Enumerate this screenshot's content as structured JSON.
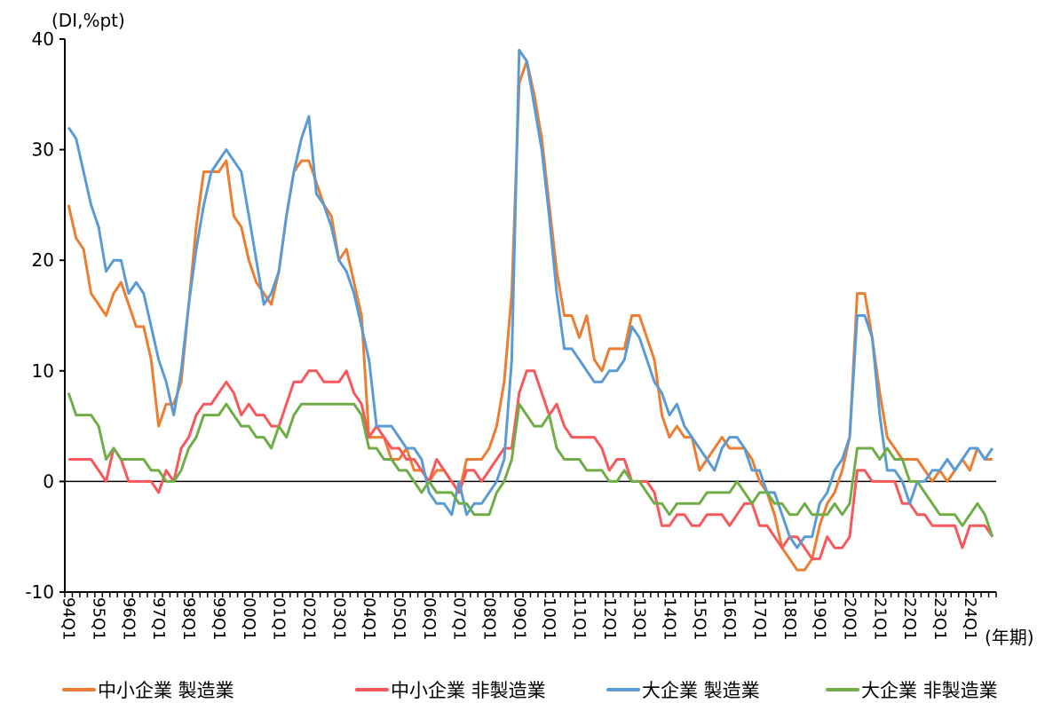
{
  "chart_data": {
    "type": "line",
    "title": "",
    "ylabel": "(DI,%pt)",
    "xlabel": "(年期)",
    "ylim": [
      -10,
      40
    ],
    "yticks": [
      -10,
      0,
      10,
      20,
      30,
      40
    ],
    "grid": false,
    "legend_position": "bottom",
    "x_tick_labels": [
      "94Q1",
      "95Q1",
      "96Q1",
      "97Q1",
      "98Q1",
      "99Q1",
      "00Q1",
      "01Q1",
      "02Q1",
      "03Q1",
      "04Q1",
      "05Q1",
      "06Q1",
      "07Q1",
      "08Q1",
      "09Q1",
      "10Q1",
      "11Q1",
      "12Q1",
      "13Q1",
      "14Q1",
      "15Q1",
      "16Q1",
      "17Q1",
      "18Q1",
      "19Q1",
      "20Q1",
      "21Q1",
      "22Q1",
      "23Q1",
      "24Q1"
    ],
    "categories": [
      "94Q1",
      "94Q2",
      "94Q3",
      "94Q4",
      "95Q1",
      "95Q2",
      "95Q3",
      "95Q4",
      "96Q1",
      "96Q2",
      "96Q3",
      "96Q4",
      "97Q1",
      "97Q2",
      "97Q3",
      "97Q4",
      "98Q1",
      "98Q2",
      "98Q3",
      "98Q4",
      "99Q1",
      "99Q2",
      "99Q3",
      "99Q4",
      "00Q1",
      "00Q2",
      "00Q3",
      "00Q4",
      "01Q1",
      "01Q2",
      "01Q3",
      "01Q4",
      "02Q1",
      "02Q2",
      "02Q3",
      "02Q4",
      "03Q1",
      "03Q2",
      "03Q3",
      "03Q4",
      "04Q1",
      "04Q2",
      "04Q3",
      "04Q4",
      "05Q1",
      "05Q2",
      "05Q3",
      "05Q4",
      "06Q1",
      "06Q2",
      "06Q3",
      "06Q4",
      "07Q1",
      "07Q2",
      "07Q3",
      "07Q4",
      "08Q1",
      "08Q2",
      "08Q3",
      "08Q4",
      "09Q1",
      "09Q2",
      "09Q3",
      "09Q4",
      "10Q1",
      "10Q2",
      "10Q3",
      "10Q4",
      "11Q1",
      "11Q2",
      "11Q3",
      "11Q4",
      "12Q1",
      "12Q2",
      "12Q3",
      "12Q4",
      "13Q1",
      "13Q2",
      "13Q3",
      "13Q4",
      "14Q1",
      "14Q2",
      "14Q3",
      "14Q4",
      "15Q1",
      "15Q2",
      "15Q3",
      "15Q4",
      "16Q1",
      "16Q2",
      "16Q3",
      "16Q4",
      "17Q1",
      "17Q2",
      "17Q3",
      "17Q4",
      "18Q1",
      "18Q2",
      "18Q3",
      "18Q4",
      "19Q1",
      "19Q2",
      "19Q3",
      "19Q4",
      "20Q1",
      "20Q2",
      "20Q3",
      "20Q4",
      "21Q1",
      "21Q2",
      "21Q3",
      "21Q4",
      "22Q1",
      "22Q2",
      "22Q3",
      "22Q4",
      "23Q1",
      "23Q2",
      "23Q3",
      "23Q4",
      "24Q1",
      "24Q2",
      "24Q3",
      "24Q4"
    ],
    "series": [
      {
        "name": "中小企業 製造業",
        "color": "#ED7D31",
        "values": [
          25,
          22,
          21,
          17,
          16,
          15,
          17,
          18,
          16,
          14,
          14,
          11,
          5,
          7,
          7,
          9,
          16,
          23,
          28,
          28,
          28,
          29,
          24,
          23,
          20,
          18,
          17,
          16,
          19,
          24,
          28,
          29,
          29,
          27,
          25,
          24,
          20,
          21,
          18,
          15,
          4,
          4,
          4,
          2,
          2,
          3,
          1,
          1,
          0,
          1,
          1,
          0,
          -1,
          2,
          2,
          2,
          3,
          5,
          9,
          17,
          36,
          38,
          35,
          31,
          25,
          19,
          15,
          15,
          13,
          15,
          11,
          10,
          12,
          12,
          12,
          15,
          15,
          13,
          11,
          6,
          4,
          5,
          4,
          4,
          1,
          2,
          3,
          4,
          3,
          3,
          3,
          2,
          0,
          -1,
          -3,
          -6,
          -7,
          -8,
          -8,
          -7,
          -4,
          -2,
          -1,
          1,
          4,
          17,
          17,
          13,
          8,
          4,
          3,
          2,
          2,
          2,
          1,
          0,
          1,
          0,
          1,
          2,
          1,
          3,
          2,
          2
        ]
      },
      {
        "name": "中小企業 非製造業",
        "color": "#F8575C",
        "values": [
          2,
          2,
          2,
          2,
          1,
          0,
          3,
          2,
          0,
          0,
          0,
          0,
          -1,
          1,
          0,
          3,
          4,
          6,
          7,
          7,
          8,
          9,
          8,
          6,
          7,
          6,
          6,
          5,
          5,
          7,
          9,
          9,
          10,
          10,
          9,
          9,
          9,
          10,
          8,
          7,
          4,
          5,
          4,
          3,
          3,
          2,
          2,
          1,
          0,
          2,
          1,
          0,
          -1,
          1,
          1,
          0,
          1,
          2,
          3,
          3,
          8,
          10,
          10,
          8,
          6,
          7,
          5,
          4,
          4,
          4,
          4,
          3,
          1,
          2,
          2,
          0,
          0,
          0,
          -1,
          -4,
          -4,
          -3,
          -3,
          -4,
          -4,
          -3,
          -3,
          -3,
          -4,
          -3,
          -2,
          -2,
          -4,
          -4,
          -5,
          -6,
          -5,
          -5,
          -6,
          -7,
          -7,
          -5,
          -6,
          -6,
          -5,
          1,
          1,
          0,
          0,
          0,
          0,
          -2,
          -2,
          -3,
          -3,
          -4,
          -4,
          -4,
          -4,
          -6,
          -4,
          -4,
          -4,
          -5
        ]
      },
      {
        "name": "大企業 製造業",
        "color": "#5B9BD5",
        "values": [
          32,
          31,
          28,
          25,
          23,
          19,
          20,
          20,
          17,
          18,
          17,
          14,
          11,
          9,
          6,
          10,
          16,
          21,
          25,
          28,
          29,
          30,
          29,
          28,
          24,
          20,
          16,
          17,
          19,
          24,
          28,
          31,
          33,
          26,
          25,
          23,
          20,
          19,
          17,
          14,
          11,
          5,
          5,
          5,
          4,
          3,
          3,
          2,
          -1,
          -2,
          -2,
          -3,
          0,
          -3,
          -2,
          -2,
          -1,
          0,
          2,
          11,
          39,
          38,
          34,
          30,
          24,
          17,
          12,
          12,
          11,
          10,
          9,
          9,
          10,
          10,
          11,
          14,
          13,
          11,
          9,
          8,
          6,
          7,
          5,
          4,
          3,
          2,
          1,
          3,
          4,
          4,
          3,
          1,
          1,
          -1,
          -1,
          -3,
          -5,
          -6,
          -5,
          -5,
          -2,
          -1,
          1,
          2,
          4,
          15,
          15,
          13,
          6,
          1,
          1,
          0,
          -2,
          0,
          0,
          1,
          1,
          2,
          1,
          2,
          3,
          3,
          2,
          3
        ]
      },
      {
        "name": "大企業 非製造業",
        "color": "#70AD47",
        "values": [
          8,
          6,
          6,
          6,
          5,
          2,
          3,
          2,
          2,
          2,
          2,
          1,
          1,
          0,
          0,
          1,
          3,
          4,
          6,
          6,
          6,
          7,
          6,
          5,
          5,
          4,
          4,
          3,
          5,
          4,
          6,
          7,
          7,
          7,
          7,
          7,
          7,
          7,
          7,
          6,
          3,
          3,
          2,
          2,
          1,
          1,
          0,
          -1,
          0,
          -1,
          -1,
          -1,
          -2,
          -2,
          -3,
          -3,
          -3,
          -1,
          0,
          2,
          7,
          6,
          5,
          5,
          6,
          3,
          2,
          2,
          2,
          1,
          1,
          1,
          0,
          0,
          1,
          0,
          0,
          -1,
          -2,
          -2,
          -3,
          -2,
          -2,
          -2,
          -2,
          -1,
          -1,
          -1,
          -1,
          0,
          -1,
          -2,
          -1,
          -1,
          -2,
          -2,
          -3,
          -3,
          -2,
          -3,
          -3,
          -3,
          -2,
          -3,
          -2,
          3,
          3,
          3,
          2,
          3,
          2,
          2,
          0,
          0,
          -1,
          -2,
          -3,
          -3,
          -3,
          -4,
          -3,
          -2,
          -3,
          -5
        ]
      }
    ]
  }
}
